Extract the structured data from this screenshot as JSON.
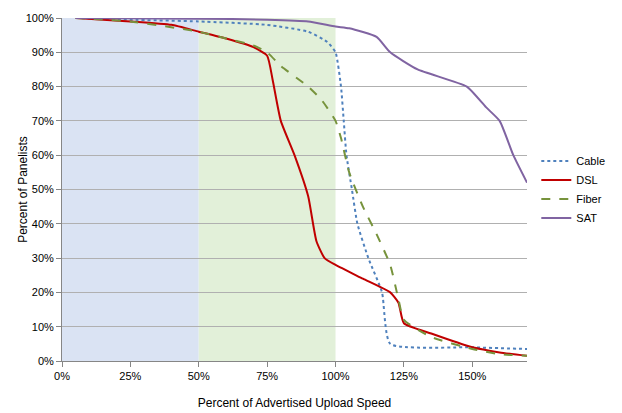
{
  "chart_data": {
    "type": "line",
    "x_label": "Percent of Advertised Upload Speed",
    "y_label": "Percent of Panelists",
    "xlim": [
      0,
      170
    ],
    "xticks": [
      {
        "value": 0,
        "label": "0%"
      },
      {
        "value": 25,
        "label": "25%"
      },
      {
        "value": 50,
        "label": "50%"
      },
      {
        "value": 75,
        "label": "75%"
      },
      {
        "value": 100,
        "label": "100%"
      },
      {
        "value": 125,
        "label": "125%"
      },
      {
        "value": 150,
        "label": "150%"
      }
    ],
    "ylim": [
      0,
      100
    ],
    "yticks": [
      {
        "value": 0,
        "label": "0%"
      },
      {
        "value": 10,
        "label": "10%"
      },
      {
        "value": 20,
        "label": "20%"
      },
      {
        "value": 30,
        "label": "30%"
      },
      {
        "value": 40,
        "label": "40%"
      },
      {
        "value": 50,
        "label": "50%"
      },
      {
        "value": 60,
        "label": "60%"
      },
      {
        "value": 70,
        "label": "70%"
      },
      {
        "value": 80,
        "label": "80%"
      },
      {
        "value": 90,
        "label": "90%"
      },
      {
        "value": 100,
        "label": "100%"
      }
    ],
    "grid": true,
    "legend": "right",
    "shaded_ranges": [
      {
        "from": 0,
        "to": 50,
        "color": "#dae3f3"
      },
      {
        "from": 50,
        "to": 100,
        "color": "#e2f0d9"
      }
    ],
    "series": [
      {
        "name": "Cable",
        "color": "#4f81bd",
        "line_style": "dotted",
        "x": [
          5,
          25,
          50,
          75,
          90,
          97,
          100,
          102,
          103,
          104,
          106,
          108,
          112,
          117,
          120,
          150,
          170
        ],
        "values": [
          100,
          99.5,
          99,
          98,
          96,
          93,
          90,
          80,
          70,
          60,
          50,
          40,
          30,
          20,
          5,
          4,
          3.5
        ]
      },
      {
        "name": "DSL",
        "color": "#c00000",
        "line_style": "solid",
        "x": [
          5,
          25,
          40,
          50,
          60,
          70,
          75,
          77,
          80,
          85,
          90,
          93,
          96,
          100,
          110,
          120,
          123,
          125,
          135,
          150,
          160,
          170
        ],
        "values": [
          100,
          99,
          98,
          96,
          94,
          91.5,
          89,
          82,
          70,
          60,
          48,
          35,
          30,
          28,
          24,
          20,
          17,
          11,
          8,
          4,
          2.5,
          1.5
        ]
      },
      {
        "name": "Fiber",
        "color": "#77933c",
        "line_style": "dashed",
        "x": [
          5,
          25,
          50,
          60,
          70,
          75,
          80,
          90,
          95,
          100,
          102,
          105,
          110,
          115,
          120,
          123,
          125,
          135,
          150,
          160,
          170
        ],
        "values": [
          100,
          99,
          96,
          94,
          92,
          90,
          86,
          80,
          76,
          70,
          65,
          55,
          45,
          37,
          28,
          18,
          12,
          7,
          3.5,
          2,
          1.5
        ]
      },
      {
        "name": "SAT",
        "color": "#8064a2",
        "line_style": "solid",
        "x": [
          5,
          50,
          75,
          90,
          100,
          105,
          115,
          120,
          130,
          148,
          155,
          160,
          165,
          170
        ],
        "values": [
          100,
          99.8,
          99.5,
          99,
          97.5,
          97,
          94.5,
          90,
          85,
          80,
          74,
          70,
          60,
          52
        ]
      }
    ]
  }
}
